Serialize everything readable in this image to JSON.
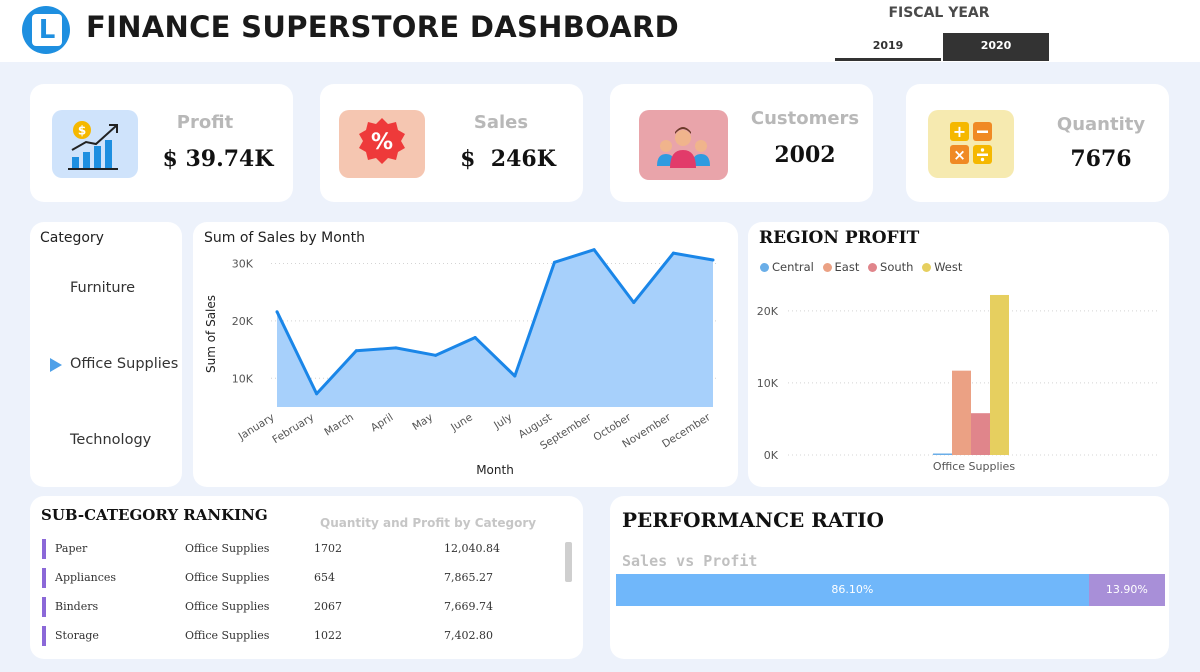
{
  "header": {
    "logo_letter": "L",
    "title": "FINANCE SUPERSTORE DASHBOARD"
  },
  "fiscal_year": {
    "label": "FISCAL YEAR",
    "options": [
      "2019",
      "2020"
    ],
    "selected": "2020"
  },
  "kpis": {
    "profit": {
      "label": "Profit",
      "value": "$ 39.74K",
      "icon": "profit-chart-icon"
    },
    "sales": {
      "label": "Sales",
      "value": "$  246K",
      "icon": "percent-badge-icon"
    },
    "customers": {
      "label": "Customers",
      "value": "2002",
      "icon": "customers-group-icon"
    },
    "quantity": {
      "label": "Quantity",
      "value": "7676",
      "icon": "calculator-icon"
    }
  },
  "category_slicer": {
    "title": "Category",
    "items": [
      "Furniture",
      "Office Supplies",
      "Technology"
    ],
    "selected": "Office Supplies"
  },
  "colors": {
    "accent": "#1e8fe0",
    "line": "#1a86e8",
    "area": "#a7d0fb",
    "central": "#6aaee8",
    "east": "#eba184",
    "south": "#e0858b",
    "west": "#e6cf5f",
    "ratio_sales": "#70b7fa",
    "ratio_profit": "#a88fd8"
  },
  "sales_chart": {
    "title": "Sum of Sales by Month",
    "chart_data": {
      "type": "area",
      "title": "Sum of Sales by Month",
      "xlabel": "Month",
      "ylabel": "Sum of Sales",
      "categories": [
        "January",
        "February",
        "March",
        "April",
        "May",
        "June",
        "July",
        "August",
        "September",
        "October",
        "November",
        "December"
      ],
      "values": [
        21600,
        7300,
        14800,
        15300,
        14000,
        17100,
        10400,
        30200,
        32400,
        23200,
        31800,
        30600
      ],
      "ylim": [
        5000,
        32000
      ],
      "yticks": [
        "10K",
        "20K",
        "30K"
      ],
      "grid": true
    }
  },
  "region_profit": {
    "title": "REGION PROFIT",
    "chart_data": {
      "type": "bar",
      "title": "REGION PROFIT",
      "categories": [
        "Office Supplies"
      ],
      "series": [
        {
          "name": "Central",
          "values": [
            100
          ]
        },
        {
          "name": "East",
          "values": [
            11700
          ]
        },
        {
          "name": "South",
          "values": [
            5800
          ]
        },
        {
          "name": "West",
          "values": [
            22200
          ]
        }
      ],
      "yticks": [
        "0K",
        "10K",
        "20K"
      ],
      "ylim": [
        0,
        24000
      ],
      "legend": "top-left",
      "grid": true
    }
  },
  "ranking": {
    "title": "SUB-CATEGORY RANKING",
    "subtitle": "Quantity and Profit by Category",
    "rows": [
      {
        "name": "Paper",
        "category": "Office Supplies",
        "quantity": "1702",
        "profit": "12,040.84"
      },
      {
        "name": "Appliances",
        "category": "Office Supplies",
        "quantity": "654",
        "profit": "7,865.27"
      },
      {
        "name": "Binders",
        "category": "Office Supplies",
        "quantity": "2067",
        "profit": "7,669.74"
      },
      {
        "name": "Storage",
        "category": "Office Supplies",
        "quantity": "1022",
        "profit": "7,402.80"
      }
    ]
  },
  "performance": {
    "title": "PERFORMANCE RATIO",
    "subtitle": "Sales vs Profit",
    "chart_data": {
      "type": "bar",
      "categories": [
        "Sales",
        "Profit"
      ],
      "values": [
        86.1,
        13.9
      ],
      "labels": [
        "86.10%",
        "13.90%"
      ]
    }
  }
}
